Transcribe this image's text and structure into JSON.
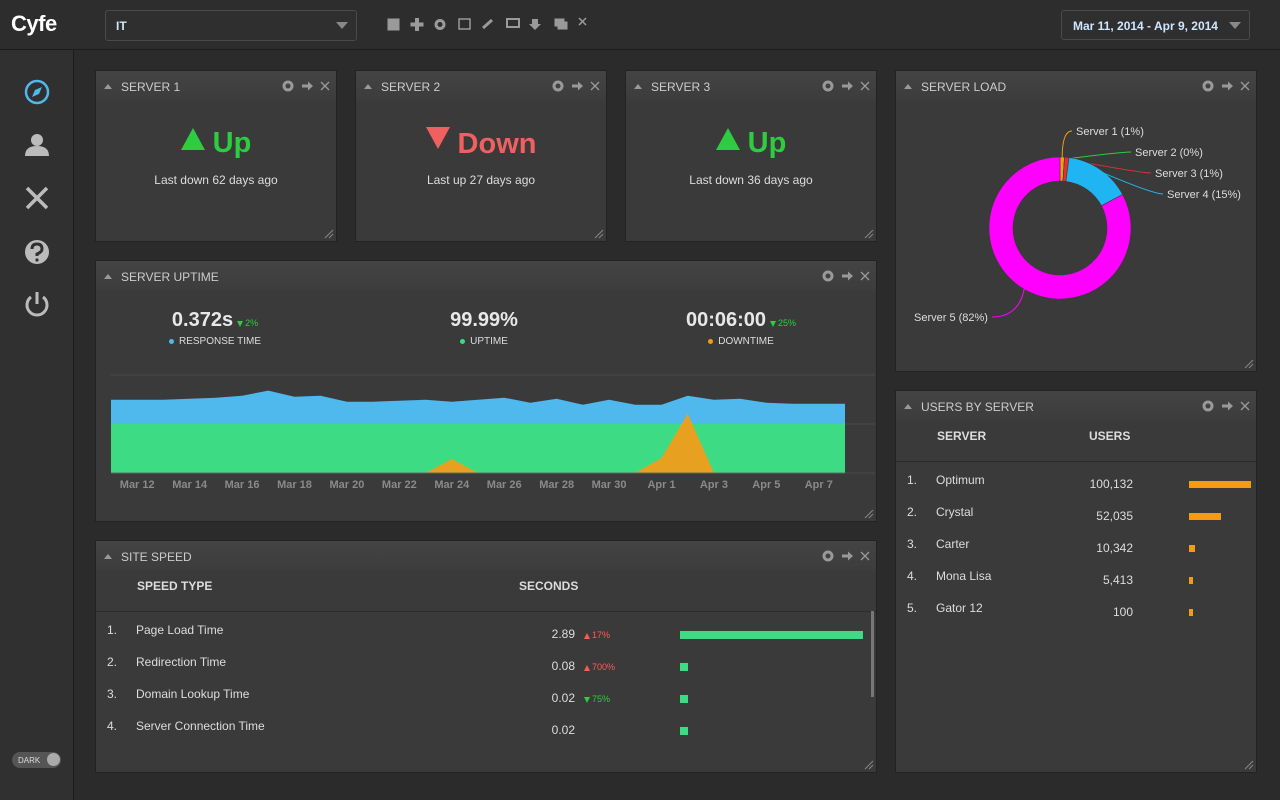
{
  "header": {
    "logo": "Cyfe",
    "dashboard": "IT",
    "date_range": "Mar 11, 2014 - Apr 9, 2014"
  },
  "sidebar": {
    "theme_toggle": "DARK"
  },
  "widgets": {
    "server1": {
      "title": "SERVER 1",
      "status": "Up",
      "note": "Last down 62 days ago"
    },
    "server2": {
      "title": "SERVER 2",
      "status": "Down",
      "note": "Last up 27 days ago"
    },
    "server3": {
      "title": "SERVER 3",
      "status": "Up",
      "note": "Last down 36 days ago"
    },
    "server_uptime": {
      "title": "SERVER UPTIME",
      "stats": [
        {
          "value": "0.372s",
          "change": "2%",
          "direction": "down",
          "change_color": "#2ecc40",
          "label": "RESPONSE TIME",
          "color": "#4fb8ec"
        },
        {
          "value": "99.99%",
          "label": "UPTIME",
          "color": "#3ddc84"
        },
        {
          "value": "00:06:00",
          "change": "25%",
          "direction": "down",
          "change_color": "#2ecc40",
          "label": "DOWNTIME",
          "color": "#f39c12"
        }
      ],
      "chart": {
        "type": "area",
        "categories": [
          null,
          "Mar 12",
          null,
          "Mar 14",
          null,
          "Mar 16",
          null,
          "Mar 18",
          null,
          "Mar 20",
          null,
          "Mar 22",
          null,
          "Mar 24",
          null,
          "Mar 26",
          null,
          "Mar 28",
          null,
          "Mar 30",
          null,
          "Apr 1",
          null,
          "Apr 3",
          null,
          "Apr 5",
          null,
          "Apr 7",
          null
        ],
        "series": [
          {
            "name": "RESPONSE TIME",
            "color": "#4fb8ec",
            "values": [
              73,
              73,
              73,
              74,
              75,
              77,
              82,
              76,
              77,
              71,
              71,
              72,
              73,
              71,
              73,
              75,
              70,
              74,
              68,
              73,
              68,
              68,
              77,
              73,
              74,
              70,
              69,
              69,
              69
            ]
          },
          {
            "name": "UPTIME",
            "color": "#3ddc84",
            "values": [
              49,
              49,
              49,
              49,
              49,
              49,
              49,
              49,
              49,
              49,
              49,
              49,
              49,
              49,
              49,
              49,
              49,
              49,
              49,
              49,
              49,
              49,
              49,
              49,
              49,
              49,
              49,
              49,
              49
            ]
          },
          {
            "name": "DOWNTIME",
            "color": "#e8a020",
            "values": [
              0,
              0,
              0,
              0,
              0,
              0,
              0,
              0,
              0,
              0,
              0,
              0,
              0,
              14,
              0,
              0,
              0,
              0,
              0,
              0,
              0,
              15,
              59,
              0,
              0,
              0,
              0,
              0,
              0
            ]
          }
        ]
      }
    },
    "server_load": {
      "title": "SERVER LOAD",
      "chart": {
        "type": "pie",
        "donut": true,
        "labels": [
          "Server 1 (1%)",
          "Server 2 (0%)",
          "Server 3 (1%)",
          "Server 4 (15%)",
          "Server 5 (82%)"
        ],
        "values": [
          1,
          0,
          1,
          15,
          82
        ],
        "colors": [
          "#f39c12",
          "#2ecc40",
          "#e03030",
          "#1fb5f2",
          "#ff00ff"
        ]
      }
    },
    "site_speed": {
      "title": "SITE SPEED",
      "columns": [
        "SPEED TYPE",
        "SECONDS"
      ],
      "bar_color": "#3ddc84",
      "rows": [
        {
          "rank": "1.",
          "name": "Page Load Time",
          "value": 2.89,
          "change": "17%",
          "direction": "up",
          "change_color": "#ff5a5a"
        },
        {
          "rank": "2.",
          "name": "Redirection Time",
          "value": 0.08,
          "change": "700%",
          "direction": "up",
          "change_color": "#ff5a5a"
        },
        {
          "rank": "3.",
          "name": "Domain Lookup Time",
          "value": 0.02,
          "change": "75%",
          "direction": "down",
          "change_color": "#2ecc40"
        },
        {
          "rank": "4.",
          "name": "Server Connection Time",
          "value": 0.02
        }
      ]
    },
    "users_by_server": {
      "title": "USERS BY SERVER",
      "columns": [
        "SERVER",
        "USERS"
      ],
      "bar_color": "#f39c12",
      "rows": [
        {
          "rank": "1.",
          "name": "Optimum",
          "value": 100132,
          "value_label": "100,132"
        },
        {
          "rank": "2.",
          "name": "Crystal",
          "value": 52035,
          "value_label": "52,035"
        },
        {
          "rank": "3.",
          "name": "Carter",
          "value": 10342,
          "value_label": "10,342"
        },
        {
          "rank": "4.",
          "name": "Mona Lisa",
          "value": 5413,
          "value_label": "5,413"
        },
        {
          "rank": "5.",
          "name": "Gator 12",
          "value": 100,
          "value_label": "100"
        }
      ]
    }
  }
}
